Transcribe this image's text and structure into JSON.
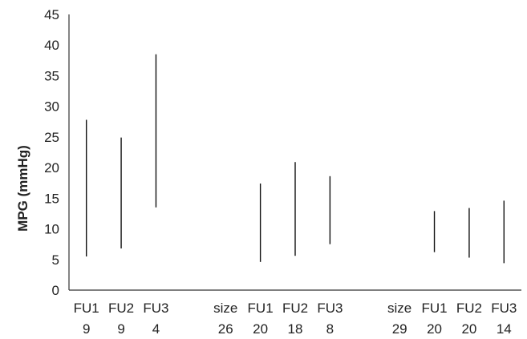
{
  "chart_data": {
    "type": "range",
    "ylabel": "MPG (mmHg)",
    "ylim": [
      0,
      45
    ],
    "yticks": [
      0,
      5,
      10,
      15,
      20,
      25,
      30,
      35,
      40,
      45
    ],
    "grid": false,
    "legend": "none",
    "bar_color": "#111111",
    "categories": [
      {
        "line1": "FU1",
        "line2": "9",
        "low": 5.5,
        "high": 27.8
      },
      {
        "line1": "FU2",
        "line2": "9",
        "low": 6.8,
        "high": 24.9
      },
      {
        "line1": "FU3",
        "line2": "4",
        "low": 13.5,
        "high": 38.5
      },
      {
        "line1": "",
        "line2": "",
        "low": null,
        "high": null
      },
      {
        "line1": "size",
        "line2": "26",
        "low": null,
        "high": null
      },
      {
        "line1": "FU1",
        "line2": "20",
        "low": 4.6,
        "high": 17.4
      },
      {
        "line1": "FU2",
        "line2": "18",
        "low": 5.6,
        "high": 20.9
      },
      {
        "line1": "FU3",
        "line2": "8",
        "low": 7.5,
        "high": 18.6
      },
      {
        "line1": "",
        "line2": "",
        "low": null,
        "high": null
      },
      {
        "line1": "size",
        "line2": "29",
        "low": null,
        "high": null
      },
      {
        "line1": "FU1",
        "line2": "20",
        "low": 6.2,
        "high": 12.9
      },
      {
        "line1": "FU2",
        "line2": "20",
        "low": 5.3,
        "high": 13.4
      },
      {
        "line1": "FU3",
        "line2": "14",
        "low": 4.4,
        "high": 14.6
      }
    ]
  }
}
